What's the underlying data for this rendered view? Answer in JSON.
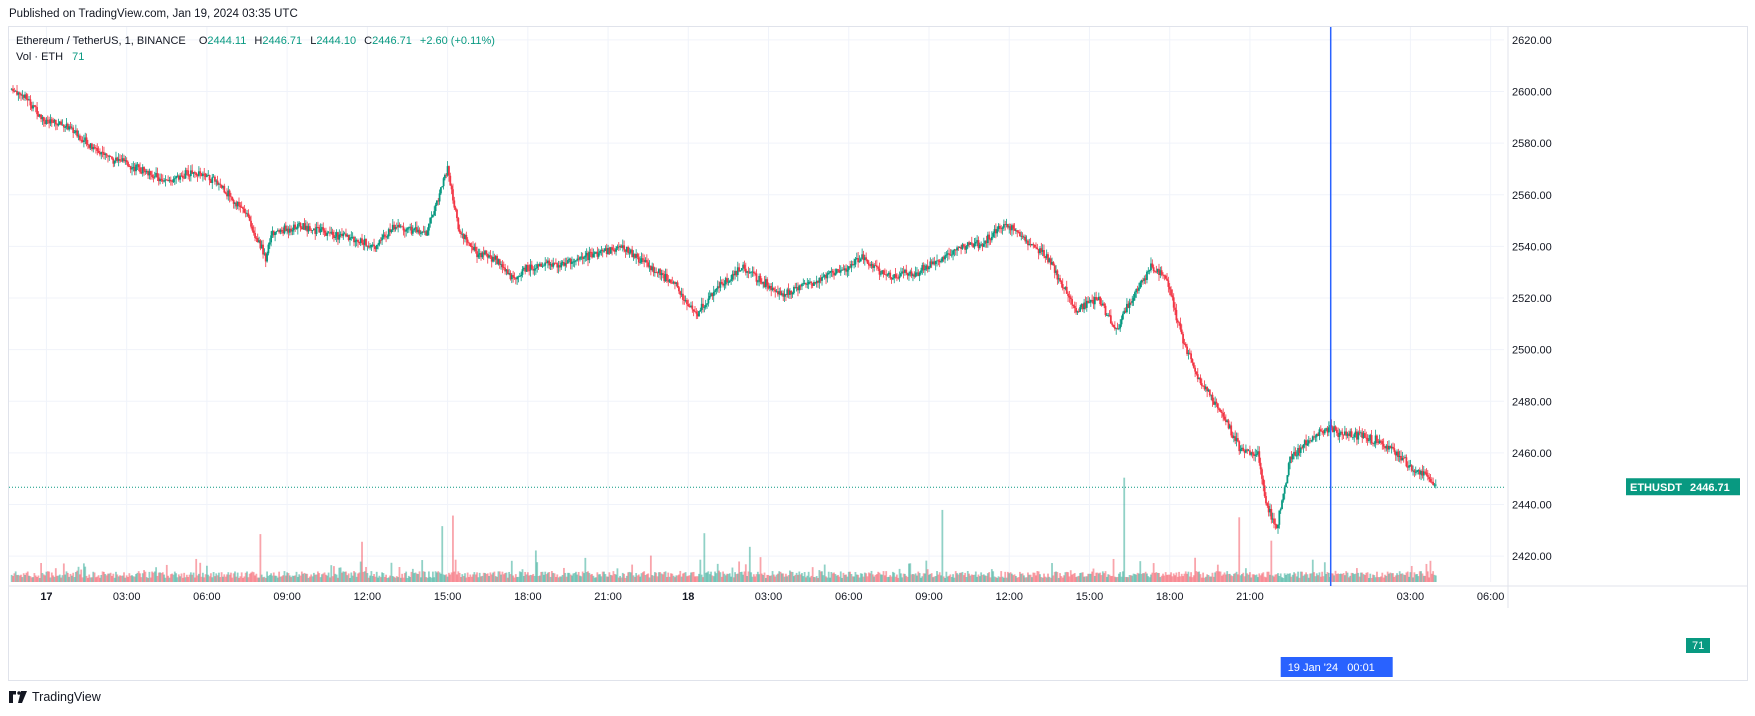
{
  "header": {
    "published_text": "Published on TradingView.com, Jan 19, 2024 03:35 UTC"
  },
  "legend": {
    "symbol": "Ethereum / TetherUS, 1, BINANCE",
    "o_label": "O",
    "o_value": "2444.11",
    "h_label": "H",
    "h_value": "2446.71",
    "l_label": "L",
    "l_value": "2444.10",
    "c_label": "C",
    "c_value": "2446.71",
    "change": "+2.60 (+0.11%)",
    "vol_label": "Vol · ETH",
    "vol_value": "71"
  },
  "colors": {
    "up": "#089981",
    "down": "#f23645",
    "crosshair": "#2962ff",
    "grid": "#f0f3fa",
    "last_price": "#089981"
  },
  "price_tag": {
    "symbol": "ETHUSDT",
    "value": "2446.71"
  },
  "volume_tag": "71",
  "crosshair_label": "19 Jan '24   00:01",
  "footer": {
    "brand": "TradingView"
  },
  "chart_data": {
    "type": "candlestick",
    "title": "Ethereum / TetherUS, 1, BINANCE",
    "interval": "1 minute",
    "ylim": [
      2410,
      2625
    ],
    "y_ticks": [
      "2620.00",
      "2600.00",
      "2580.00",
      "2560.00",
      "2540.00",
      "2520.00",
      "2500.00",
      "2480.00",
      "2460.00",
      "2440.00",
      "2420.00"
    ],
    "y_tick_values": [
      2620,
      2600,
      2580,
      2560,
      2540,
      2520,
      2500,
      2480,
      2460,
      2440,
      2420
    ],
    "x_ticks": [
      "17",
      "03:00",
      "06:00",
      "09:00",
      "12:00",
      "15:00",
      "18:00",
      "21:00",
      "18",
      "03:00",
      "06:00",
      "09:00",
      "12:00",
      "15:00",
      "18:00",
      "21:00",
      "03:00",
      "06:00"
    ],
    "x_tick_hours": [
      0,
      3,
      6,
      9,
      12,
      15,
      18,
      21,
      24,
      27,
      30,
      33,
      36,
      39,
      42,
      45,
      51,
      54
    ],
    "x_tick_bold": [
      true,
      false,
      false,
      false,
      false,
      false,
      false,
      false,
      true,
      false,
      false,
      false,
      false,
      false,
      false,
      false,
      false,
      false
    ],
    "x_range_hours": [
      -1.4,
      54.5
    ],
    "last_price": 2446.71,
    "crosshair_hour": 48.02,
    "price_series": {
      "name": "ETHUSDT close (approx.)",
      "hours": [
        -1.3,
        -0.8,
        0,
        0.7,
        1.5,
        2.5,
        3.5,
        4.5,
        5.5,
        6.5,
        7.5,
        8.2,
        8.4,
        9.5,
        11,
        12.3,
        13,
        14.2,
        15,
        15.4,
        16,
        16.8,
        17.5,
        18,
        19.5,
        21.5,
        22.5,
        23.5,
        24.3,
        25,
        26,
        27.5,
        28.5,
        29.8,
        30.5,
        31.5,
        32.5,
        33.3,
        34.2,
        35,
        35.8,
        36.5,
        37.5,
        38.5,
        39.3,
        40,
        40.7,
        41.3,
        41.9,
        42.3,
        43,
        43.8,
        44.6,
        45.3,
        45.6,
        46,
        46.5,
        47.2,
        48,
        48.3,
        49,
        49.7,
        50.5,
        51,
        51.6,
        51.9
      ],
      "values": [
        2601,
        2598,
        2588,
        2587,
        2580,
        2574,
        2570,
        2565,
        2569,
        2564,
        2552,
        2536,
        2545,
        2548,
        2544,
        2540,
        2548,
        2545,
        2570,
        2547,
        2538,
        2535,
        2527,
        2532,
        2534,
        2540,
        2533,
        2525,
        2513,
        2523,
        2532,
        2521,
        2526,
        2531,
        2536,
        2528,
        2530,
        2534,
        2540,
        2541,
        2549,
        2544,
        2535,
        2515,
        2520,
        2508,
        2522,
        2532,
        2528,
        2510,
        2490,
        2478,
        2462,
        2460,
        2440,
        2431,
        2458,
        2465,
        2470,
        2468,
        2467,
        2465,
        2460,
        2454,
        2451,
        2446.71
      ]
    },
    "annotations": [
      "ETHUSDT 2446.71",
      "19 Jan '24 00:01"
    ]
  }
}
